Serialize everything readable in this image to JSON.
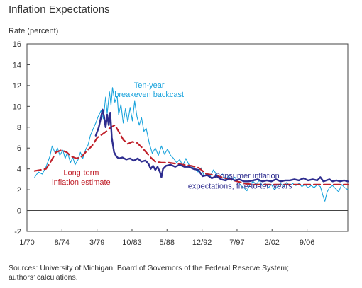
{
  "chart_data": {
    "type": "line",
    "title": "Inflation Expectations",
    "ylabel": "Rate (percent)",
    "xlabel": "",
    "xlim": [
      1970.0,
      2012.0
    ],
    "ylim": [
      -2,
      16
    ],
    "yticks": [
      -2,
      0,
      2,
      4,
      6,
      8,
      10,
      12,
      14,
      16
    ],
    "xticks": [
      {
        "label": "1/70",
        "x": 1970.0
      },
      {
        "label": "8/74",
        "x": 1974.58
      },
      {
        "label": "3/79",
        "x": 1979.17
      },
      {
        "label": "10/83",
        "x": 1983.75
      },
      {
        "label": "5/88",
        "x": 1988.33
      },
      {
        "label": "12/92",
        "x": 1992.92
      },
      {
        "label": "7/97",
        "x": 1997.5
      },
      {
        "label": "2/02",
        "x": 2002.08
      },
      {
        "label": "9/06",
        "x": 2006.67
      }
    ],
    "grid": false,
    "zero_line": true,
    "series": [
      {
        "name": "Ten-year breakeven backcast",
        "color": "#1aa3dc",
        "style": "solid",
        "points": [
          [
            1971.0,
            3.2
          ],
          [
            1971.5,
            3.7
          ],
          [
            1972.0,
            3.5
          ],
          [
            1972.5,
            4.2
          ],
          [
            1973.0,
            5.2
          ],
          [
            1973.3,
            6.2
          ],
          [
            1973.7,
            5.5
          ],
          [
            1974.0,
            6.0
          ],
          [
            1974.3,
            5.3
          ],
          [
            1974.7,
            5.8
          ],
          [
            1975.0,
            5.0
          ],
          [
            1975.3,
            5.6
          ],
          [
            1975.7,
            4.6
          ],
          [
            1976.0,
            5.1
          ],
          [
            1976.3,
            4.4
          ],
          [
            1976.7,
            4.9
          ],
          [
            1977.0,
            5.6
          ],
          [
            1977.3,
            5.0
          ],
          [
            1977.7,
            5.9
          ],
          [
            1978.0,
            6.3
          ],
          [
            1978.3,
            7.2
          ],
          [
            1978.7,
            7.9
          ],
          [
            1979.0,
            8.4
          ],
          [
            1979.3,
            9.0
          ],
          [
            1979.7,
            9.6
          ],
          [
            1980.0,
            8.8
          ],
          [
            1980.3,
            10.9
          ],
          [
            1980.5,
            9.3
          ],
          [
            1980.8,
            11.4
          ],
          [
            1981.0,
            10.1
          ],
          [
            1981.2,
            11.8
          ],
          [
            1981.5,
            10.4
          ],
          [
            1981.8,
            11.0
          ],
          [
            1982.0,
            9.2
          ],
          [
            1982.3,
            10.2
          ],
          [
            1982.6,
            8.4
          ],
          [
            1982.9,
            9.8
          ],
          [
            1983.2,
            8.5
          ],
          [
            1983.5,
            9.9
          ],
          [
            1983.8,
            8.6
          ],
          [
            1984.1,
            10.5
          ],
          [
            1984.4,
            9.0
          ],
          [
            1984.7,
            8.2
          ],
          [
            1985.0,
            8.9
          ],
          [
            1985.3,
            7.6
          ],
          [
            1985.6,
            7.9
          ],
          [
            1986.0,
            6.5
          ],
          [
            1986.4,
            5.5
          ],
          [
            1986.8,
            6.0
          ],
          [
            1987.2,
            5.3
          ],
          [
            1987.6,
            6.2
          ],
          [
            1988.0,
            5.4
          ],
          [
            1988.4,
            5.9
          ],
          [
            1988.8,
            5.3
          ],
          [
            1989.2,
            5.0
          ],
          [
            1989.6,
            4.6
          ],
          [
            1990.0,
            4.9
          ],
          [
            1990.4,
            4.3
          ],
          [
            1990.8,
            5.0
          ],
          [
            1991.2,
            4.4
          ],
          [
            1991.6,
            4.2
          ],
          [
            1992.0,
            4.0
          ],
          [
            1992.4,
            3.7
          ],
          [
            1992.8,
            4.1
          ],
          [
            1993.2,
            3.3
          ],
          [
            1993.6,
            3.6
          ],
          [
            1994.0,
            3.3
          ],
          [
            1994.4,
            3.9
          ],
          [
            1994.8,
            3.5
          ],
          [
            1995.2,
            3.2
          ],
          [
            1995.6,
            3.5
          ],
          [
            1996.0,
            3.0
          ],
          [
            1996.4,
            3.3
          ],
          [
            1996.8,
            2.9
          ],
          [
            1997.2,
            3.2
          ],
          [
            1997.6,
            2.8
          ],
          [
            1998.0,
            2.4
          ],
          [
            1998.4,
            2.2
          ],
          [
            1998.8,
            1.9
          ],
          [
            1999.2,
            2.5
          ],
          [
            1999.6,
            2.8
          ],
          [
            2000.0,
            2.5
          ],
          [
            2000.4,
            2.9
          ],
          [
            2000.8,
            2.4
          ],
          [
            2001.2,
            2.6
          ],
          [
            2001.6,
            2.2
          ],
          [
            2002.0,
            2.5
          ],
          [
            2002.4,
            2.0
          ],
          [
            2002.8,
            2.3
          ],
          [
            2003.2,
            2.6
          ],
          [
            2003.6,
            2.3
          ],
          [
            2004.0,
            2.7
          ],
          [
            2004.4,
            2.4
          ],
          [
            2004.8,
            2.6
          ],
          [
            2005.2,
            2.4
          ],
          [
            2005.6,
            2.6
          ],
          [
            2006.0,
            2.3
          ],
          [
            2006.4,
            2.5
          ],
          [
            2006.8,
            2.2
          ],
          [
            2007.2,
            2.4
          ],
          [
            2007.6,
            2.2
          ],
          [
            2008.0,
            2.5
          ],
          [
            2008.4,
            2.3
          ],
          [
            2008.8,
            1.3
          ],
          [
            2009.0,
            0.9
          ],
          [
            2009.3,
            1.8
          ],
          [
            2009.6,
            2.2
          ],
          [
            2010.0,
            2.4
          ],
          [
            2010.4,
            2.1
          ],
          [
            2010.8,
            1.8
          ],
          [
            2011.2,
            2.5
          ],
          [
            2011.6,
            2.2
          ],
          [
            2012.0,
            2.0
          ]
        ]
      },
      {
        "name": "Long-term inflation estimate",
        "color": "#c0202a",
        "style": "dashed",
        "points": [
          [
            1971.0,
            3.8
          ],
          [
            1971.8,
            3.9
          ],
          [
            1972.5,
            4.0
          ],
          [
            1973.2,
            4.8
          ],
          [
            1973.8,
            5.6
          ],
          [
            1974.5,
            5.8
          ],
          [
            1975.2,
            5.6
          ],
          [
            1975.8,
            5.2
          ],
          [
            1976.5,
            5.0
          ],
          [
            1977.2,
            5.2
          ],
          [
            1977.8,
            5.7
          ],
          [
            1978.5,
            6.2
          ],
          [
            1979.2,
            7.0
          ],
          [
            1979.8,
            7.3
          ],
          [
            1980.4,
            7.6
          ],
          [
            1981.0,
            8.0
          ],
          [
            1981.5,
            8.2
          ],
          [
            1982.0,
            7.6
          ],
          [
            1982.6,
            6.8
          ],
          [
            1983.2,
            6.4
          ],
          [
            1983.8,
            6.6
          ],
          [
            1984.4,
            6.5
          ],
          [
            1985.0,
            6.1
          ],
          [
            1985.6,
            5.6
          ],
          [
            1986.2,
            5.1
          ],
          [
            1986.8,
            4.7
          ],
          [
            1987.6,
            4.6
          ],
          [
            1988.5,
            4.6
          ],
          [
            1989.5,
            4.5
          ],
          [
            1990.5,
            4.4
          ],
          [
            1991.5,
            4.3
          ],
          [
            1992.5,
            4.1
          ],
          [
            1993.5,
            3.5
          ],
          [
            1994.5,
            3.4
          ],
          [
            1995.5,
            3.2
          ],
          [
            1996.5,
            3.0
          ],
          [
            1997.5,
            2.8
          ],
          [
            1998.5,
            2.6
          ],
          [
            1999.5,
            2.5
          ],
          [
            2000.5,
            2.5
          ],
          [
            2001.5,
            2.5
          ],
          [
            2002.5,
            2.5
          ],
          [
            2003.5,
            2.5
          ],
          [
            2004.5,
            2.5
          ],
          [
            2005.5,
            2.5
          ],
          [
            2006.5,
            2.5
          ],
          [
            2007.5,
            2.5
          ],
          [
            2008.5,
            2.5
          ],
          [
            2009.5,
            2.5
          ],
          [
            2010.5,
            2.5
          ],
          [
            2011.5,
            2.5
          ],
          [
            2012.0,
            2.5
          ]
        ]
      },
      {
        "name": "Consumer inflation expectations, five-to-ten years",
        "color": "#2e2d8f",
        "style": "solid",
        "points": [
          [
            1979.0,
            7.2
          ],
          [
            1979.4,
            8.0
          ],
          [
            1979.7,
            9.0
          ],
          [
            1979.9,
            9.7
          ],
          [
            1980.1,
            9.0
          ],
          [
            1980.3,
            8.0
          ],
          [
            1980.5,
            9.2
          ],
          [
            1980.7,
            8.2
          ],
          [
            1980.9,
            9.4
          ],
          [
            1981.1,
            7.0
          ],
          [
            1981.4,
            5.6
          ],
          [
            1981.7,
            5.2
          ],
          [
            1982.0,
            5.0
          ],
          [
            1982.5,
            5.1
          ],
          [
            1983.0,
            4.9
          ],
          [
            1983.5,
            5.0
          ],
          [
            1984.0,
            4.8
          ],
          [
            1984.5,
            5.0
          ],
          [
            1985.0,
            4.7
          ],
          [
            1985.5,
            4.8
          ],
          [
            1985.9,
            4.5
          ],
          [
            1986.2,
            4.0
          ],
          [
            1986.5,
            4.3
          ],
          [
            1986.8,
            3.9
          ],
          [
            1987.1,
            4.2
          ],
          [
            1987.4,
            3.7
          ],
          [
            1987.6,
            3.2
          ],
          [
            1987.8,
            4.0
          ],
          [
            1988.2,
            4.3
          ],
          [
            1988.8,
            4.4
          ],
          [
            1989.4,
            4.2
          ],
          [
            1990.0,
            4.4
          ],
          [
            1990.6,
            4.2
          ],
          [
            1991.2,
            4.2
          ],
          [
            1991.8,
            4.0
          ],
          [
            1992.4,
            3.9
          ],
          [
            1993.0,
            3.3
          ],
          [
            1993.6,
            3.4
          ],
          [
            1994.2,
            3.1
          ],
          [
            1994.8,
            3.3
          ],
          [
            1995.4,
            3.0
          ],
          [
            1996.0,
            2.9
          ],
          [
            1996.6,
            3.1
          ],
          [
            1997.2,
            2.9
          ],
          [
            1997.8,
            3.0
          ],
          [
            1998.4,
            2.8
          ],
          [
            1999.0,
            2.8
          ],
          [
            1999.6,
            2.9
          ],
          [
            2000.2,
            3.0
          ],
          [
            2000.8,
            2.8
          ],
          [
            2001.4,
            2.9
          ],
          [
            2002.0,
            2.8
          ],
          [
            2002.6,
            3.0
          ],
          [
            2003.2,
            2.8
          ],
          [
            2003.8,
            2.9
          ],
          [
            2004.4,
            2.9
          ],
          [
            2005.0,
            3.0
          ],
          [
            2005.6,
            2.9
          ],
          [
            2006.2,
            3.1
          ],
          [
            2006.8,
            2.9
          ],
          [
            2007.4,
            3.0
          ],
          [
            2008.0,
            2.9
          ],
          [
            2008.4,
            3.2
          ],
          [
            2008.8,
            2.8
          ],
          [
            2009.2,
            2.9
          ],
          [
            2009.6,
            3.0
          ],
          [
            2010.0,
            2.8
          ],
          [
            2010.5,
            2.9
          ],
          [
            2011.0,
            2.8
          ],
          [
            2011.5,
            2.9
          ],
          [
            2012.0,
            2.8
          ]
        ]
      }
    ],
    "annotations": [
      {
        "text": "Ten-year",
        "x": 1986.0,
        "y": 11.8,
        "color": "#1aa3dc"
      },
      {
        "text": "breakeven backcast",
        "x": 1986.0,
        "y": 10.9,
        "color": "#1aa3dc"
      },
      {
        "text": "Long-term",
        "x": 1977.1,
        "y": 3.4,
        "color": "#c0202a"
      },
      {
        "text": "inflation estimate",
        "x": 1977.1,
        "y": 2.5,
        "color": "#c0202a"
      },
      {
        "text": "Consumer inflation",
        "x": 1998.8,
        "y": 3.1,
        "color": "#2e2d8f"
      },
      {
        "text": "expectations, five-to-ten years",
        "x": 1997.9,
        "y": 2.1,
        "color": "#2e2d8f"
      }
    ]
  },
  "source_line_1": "Sources: University of Michigan; Board of Governors of the Federal Reserve System;",
  "source_line_2": "authors’ calculations."
}
